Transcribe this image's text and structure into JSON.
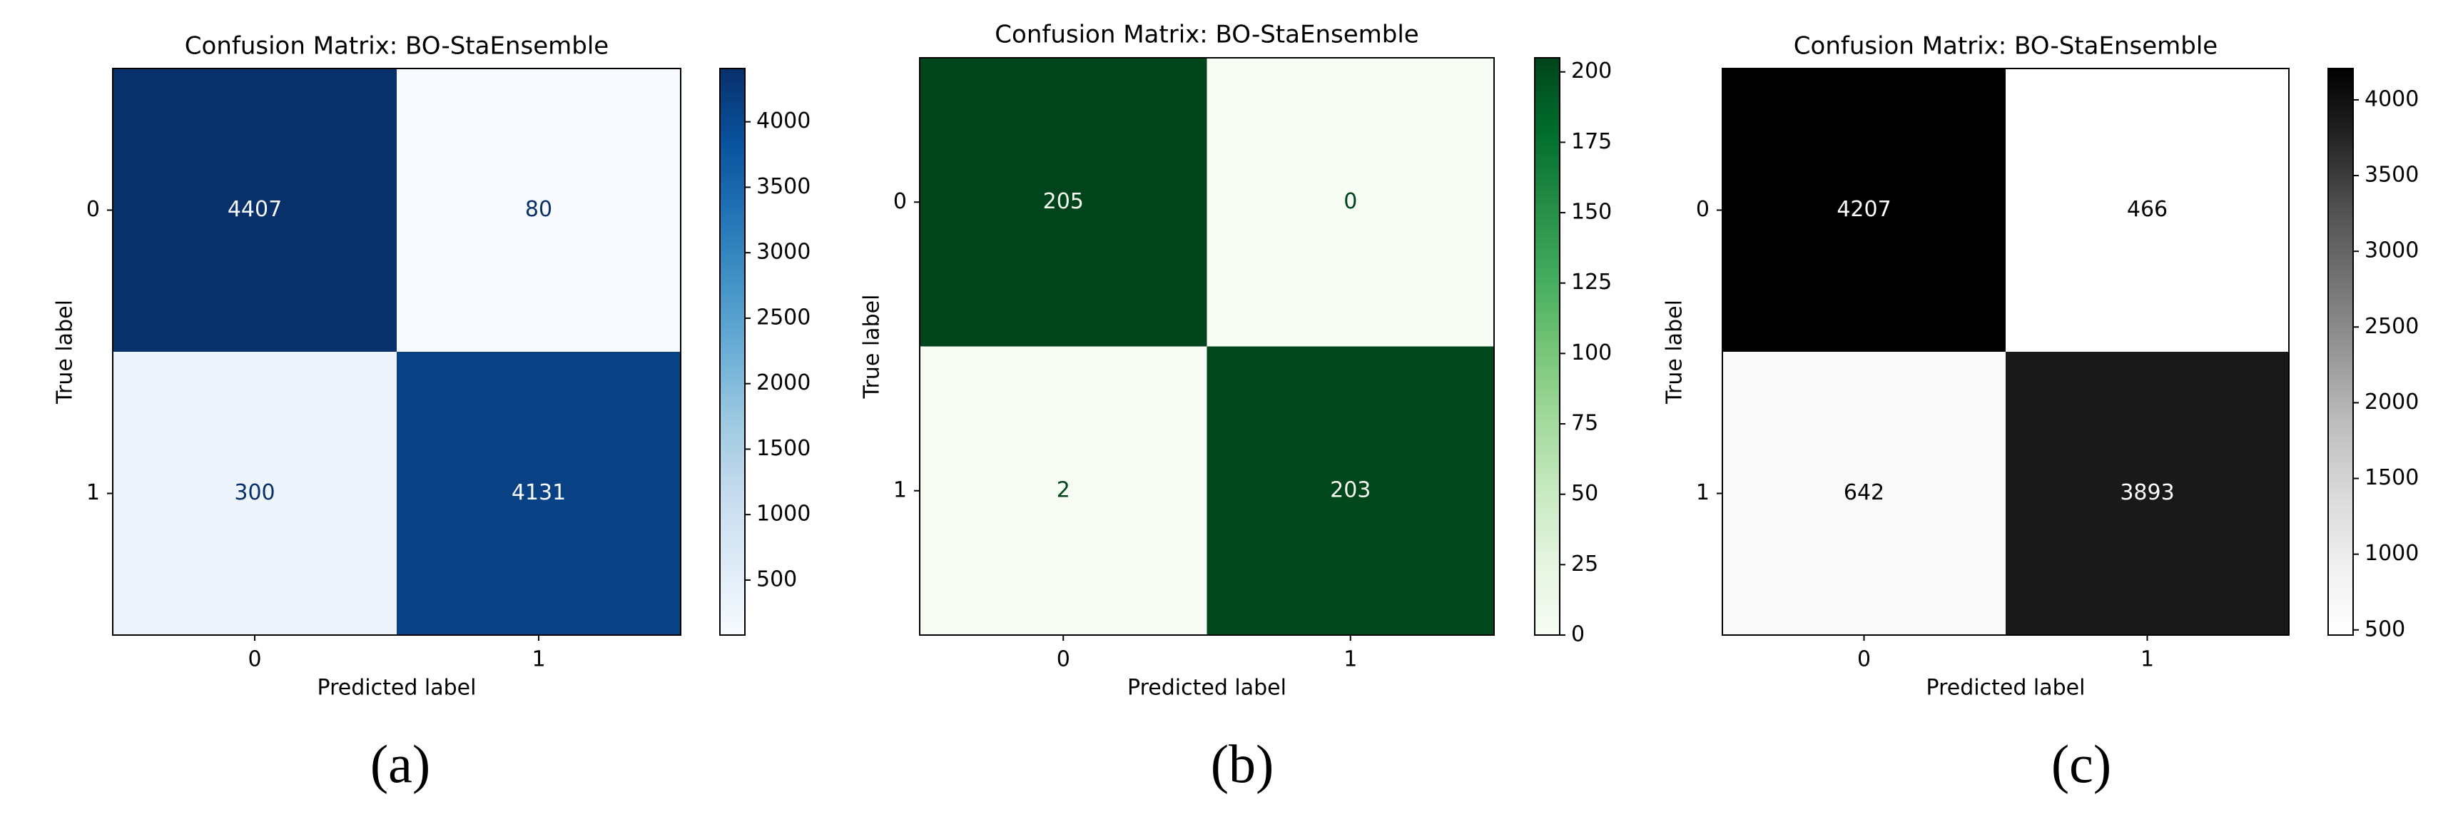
{
  "chart_data": [
    {
      "type": "heatmap",
      "title": "Confusion Matrix: BO-StaEnsemble",
      "x_label": "Predicted label",
      "y_label": "True label",
      "x_categories": [
        "0",
        "1"
      ],
      "y_categories": [
        "0",
        "1"
      ],
      "values": [
        [
          4407,
          80
        ],
        [
          300,
          4131
        ]
      ],
      "clim": [
        80,
        4407
      ],
      "cticks": [
        500,
        1000,
        1500,
        2000,
        2500,
        3000,
        3500,
        4000
      ],
      "cmap": [
        "#f7fbff",
        "#deebf7",
        "#c6dbef",
        "#9ecae1",
        "#6baed6",
        "#4292c6",
        "#2171b5",
        "#08519c",
        "#08306b"
      ],
      "caption": "(a)"
    },
    {
      "type": "heatmap",
      "title": "Confusion Matrix: BO-StaEnsemble",
      "x_label": "Predicted label",
      "y_label": "True label",
      "x_categories": [
        "0",
        "1"
      ],
      "y_categories": [
        "0",
        "1"
      ],
      "values": [
        [
          205,
          0
        ],
        [
          2,
          203
        ]
      ],
      "clim": [
        0,
        205
      ],
      "cticks": [
        0,
        25,
        50,
        75,
        100,
        125,
        150,
        175,
        200
      ],
      "cmap": [
        "#f7fcf5",
        "#e5f5e0",
        "#c7e9c0",
        "#a1d99b",
        "#74c476",
        "#41ab5d",
        "#238b45",
        "#006d2c",
        "#00441b"
      ],
      "caption": "(b)"
    },
    {
      "type": "heatmap",
      "title": "Confusion Matrix: BO-StaEnsemble",
      "x_label": "Predicted label",
      "y_label": "True label",
      "x_categories": [
        "0",
        "1"
      ],
      "y_categories": [
        "0",
        "1"
      ],
      "values": [
        [
          4207,
          466
        ],
        [
          642,
          3893
        ]
      ],
      "clim": [
        466,
        4207
      ],
      "cticks": [
        500,
        1000,
        1500,
        2000,
        2500,
        3000,
        3500,
        4000
      ],
      "cmap": [
        "#ffffff",
        "#f0f0f0",
        "#d9d9d9",
        "#bdbdbd",
        "#969696",
        "#737373",
        "#525252",
        "#252525",
        "#000000"
      ],
      "caption": "(c)"
    }
  ]
}
